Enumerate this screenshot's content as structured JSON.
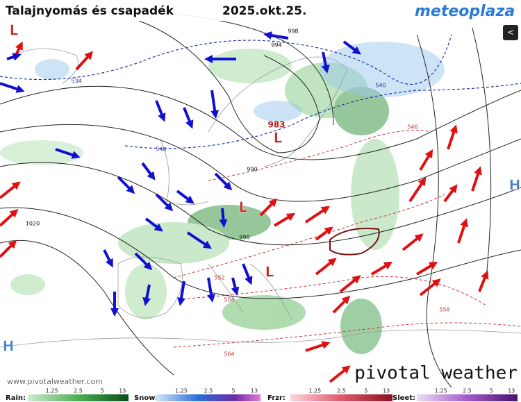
{
  "header": {
    "title": "Talajnyomás és csapadék",
    "date": "2025.okt.25.",
    "logo": "meteoplaza"
  },
  "pressure_centers": [
    {
      "text": "L",
      "kind": "low"
    },
    {
      "text": "L",
      "kind": "low"
    },
    {
      "text": "L",
      "kind": "low"
    },
    {
      "text": "L",
      "kind": "low"
    },
    {
      "text": "H",
      "kind": "high"
    },
    {
      "text": "H",
      "kind": "high"
    }
  ],
  "isobar_labels": [
    "983",
    "998",
    "994",
    "990",
    "998",
    "1020"
  ],
  "thickness_labels": [
    "534",
    "540",
    "540",
    "546",
    "552",
    "558",
    "558",
    "564"
  ],
  "watermark": "www.pivotalweather.com",
  "brand": "pivotal weather",
  "legend": [
    {
      "label": "Rain:",
      "ticks": [
        "1.25",
        "2.5",
        "5",
        "13"
      ]
    },
    {
      "label": "Snow:",
      "ticks": [
        "1.25",
        "2.5",
        "5",
        "13"
      ]
    },
    {
      "label": "Frzr:",
      "ticks": [
        "1.25",
        "2.5",
        "5",
        "13"
      ]
    },
    {
      "label": "Sleet:",
      "ticks": [
        "1.25",
        "2.5",
        "5",
        "13"
      ]
    }
  ]
}
